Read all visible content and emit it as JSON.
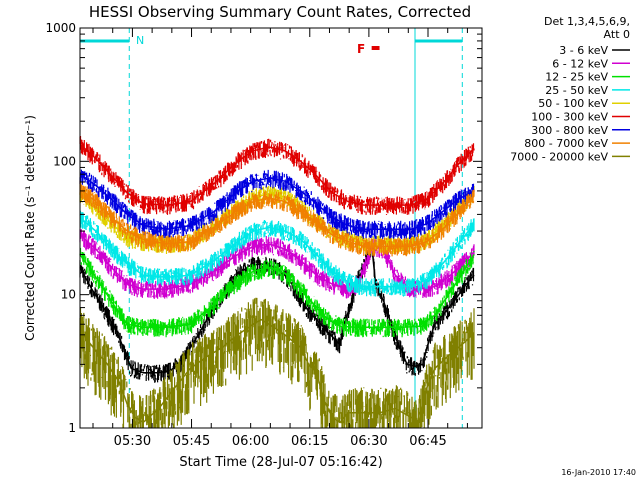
{
  "chart_data": {
    "type": "line",
    "title": "HESSI Observing Summary Count Rates, Corrected",
    "xlabel": "Start Time (28-Jul-07 05:16:42)",
    "ylabel": "Corrected Count Rate (s⁻¹ detector⁻¹)",
    "yscale": "log",
    "ylim": [
      1,
      1000
    ],
    "xlim_minutes": [
      0,
      102
    ],
    "x_ticks": [
      {
        "minutes": 13.3,
        "label": "05:30"
      },
      {
        "minutes": 28.3,
        "label": "05:45"
      },
      {
        "minutes": 43.3,
        "label": "06:00"
      },
      {
        "minutes": 58.3,
        "label": "06:15"
      },
      {
        "minutes": 73.3,
        "label": "06:30"
      },
      {
        "minutes": 88.3,
        "label": "06:45"
      }
    ],
    "y_tick_labels": [
      {
        "value": 1,
        "label": "1"
      },
      {
        "value": 10,
        "label": "10"
      },
      {
        "value": 100,
        "label": "100"
      },
      {
        "value": 1000,
        "label": "1000"
      }
    ],
    "legend_title": [
      "Det 1,3,4,5,6,9,",
      "Att 0"
    ],
    "legend_placement": "right",
    "timestamp": "16-Jan-2010 17:40",
    "annotations": {
      "n_label": "N",
      "f_label": "F",
      "f_minutes": [
        74,
        76
      ]
    },
    "night_intervals_minutes": [
      [
        0,
        12.5
      ],
      [
        85,
        97
      ]
    ],
    "series": [
      {
        "name": "3 - 6 keV",
        "color": "#000000",
        "x": [
          0,
          3,
          6,
          9,
          11,
          13,
          16,
          20,
          23,
          26,
          30,
          35,
          40,
          43,
          46,
          50,
          53,
          55,
          58,
          60,
          63,
          66,
          67,
          69,
          70,
          72,
          74,
          75,
          77,
          80,
          83,
          85,
          87,
          88,
          90,
          92,
          95,
          98,
          100
        ],
        "y": [
          16,
          11,
          8,
          5.5,
          4,
          2.8,
          2.6,
          2.6,
          2.7,
          3.2,
          5,
          9,
          14,
          16.5,
          17,
          16,
          13,
          10.5,
          7.5,
          6.5,
          5.2,
          4.2,
          6,
          9,
          12,
          16,
          24,
          12,
          9,
          4.8,
          3,
          2.9,
          3,
          4,
          6,
          7,
          9,
          12,
          14
        ]
      },
      {
        "name": "6 - 12 keV",
        "color": "#d000d0",
        "x": [
          0,
          4,
          8,
          12,
          16,
          22,
          28,
          34,
          40,
          44,
          48,
          52,
          56,
          60,
          64,
          68,
          70,
          72,
          74,
          77,
          80,
          83,
          86,
          90,
          94,
          98,
          100
        ],
        "y": [
          28,
          22,
          16,
          12,
          11,
          11,
          12,
          15,
          20,
          23,
          24,
          22,
          18,
          14,
          12,
          11,
          11.5,
          15,
          23,
          22,
          14,
          11.5,
          11,
          11.5,
          14,
          18,
          21
        ]
      },
      {
        "name": "12 - 25 keV",
        "color": "#00e000",
        "x": [
          0,
          3,
          6,
          9,
          12,
          16,
          22,
          28,
          34,
          40,
          44,
          48,
          52,
          56,
          60,
          63,
          66,
          70,
          74,
          78,
          82,
          86,
          90,
          93,
          96,
          100
        ],
        "y": [
          20,
          15,
          11,
          8,
          6,
          5.7,
          5.7,
          6,
          8.5,
          12.5,
          15,
          16,
          14.5,
          11,
          8,
          6.5,
          5.8,
          5.7,
          5.7,
          5.7,
          5.7,
          5.8,
          7,
          9.5,
          13,
          20
        ]
      },
      {
        "name": "25 - 50 keV",
        "color": "#00e8e8",
        "x": [
          0,
          4,
          8,
          12,
          16,
          22,
          28,
          34,
          40,
          44,
          48,
          52,
          56,
          60,
          64,
          68,
          72,
          76,
          80,
          84,
          88,
          92,
          96,
          100
        ],
        "y": [
          38,
          30,
          22,
          17,
          14,
          13.5,
          14,
          18,
          25,
          30,
          32,
          30,
          26,
          20,
          15,
          12.5,
          11.5,
          11.5,
          11.5,
          11.5,
          13,
          17,
          24,
          34
        ]
      },
      {
        "name": "50 - 100 keV",
        "color": "#e0d000",
        "x": [
          0,
          4,
          8,
          12,
          16,
          22,
          28,
          34,
          40,
          44,
          48,
          52,
          56,
          60,
          64,
          68,
          72,
          76,
          80,
          84,
          88,
          92,
          96,
          100
        ],
        "y": [
          58,
          45,
          34,
          27,
          25,
          24,
          25,
          33,
          45,
          54,
          57,
          54,
          45,
          36,
          29,
          26,
          24,
          24,
          24,
          24,
          26,
          33,
          44,
          58
        ]
      },
      {
        "name": "100 - 300 keV",
        "color": "#e00000",
        "x": [
          0,
          4,
          8,
          12,
          16,
          22,
          28,
          34,
          40,
          44,
          48,
          52,
          56,
          60,
          64,
          68,
          72,
          76,
          80,
          84,
          88,
          92,
          96,
          100
        ],
        "y": [
          135,
          105,
          78,
          58,
          48,
          47,
          50,
          68,
          100,
          120,
          128,
          120,
          100,
          78,
          58,
          50,
          47,
          47,
          47,
          47,
          52,
          68,
          95,
          125
        ]
      },
      {
        "name": "300 - 800 keV",
        "color": "#0000e0",
        "x": [
          0,
          4,
          8,
          12,
          16,
          22,
          28,
          34,
          40,
          44,
          48,
          52,
          56,
          60,
          64,
          68,
          72,
          76,
          80,
          84,
          88,
          92,
          96,
          100
        ],
        "y": [
          80,
          66,
          52,
          40,
          33,
          31,
          33,
          42,
          60,
          71,
          75,
          71,
          60,
          48,
          38,
          33,
          31,
          31,
          31,
          31,
          34,
          42,
          52,
          60
        ]
      },
      {
        "name": "800 - 7000 keV",
        "color": "#f08000",
        "x": [
          0,
          4,
          8,
          12,
          16,
          22,
          28,
          34,
          40,
          44,
          48,
          52,
          56,
          60,
          64,
          68,
          72,
          76,
          80,
          84,
          88,
          92,
          96,
          100
        ],
        "y": [
          62,
          50,
          38,
          30,
          26,
          24,
          25,
          32,
          43,
          50,
          53,
          50,
          42,
          35,
          28,
          25,
          23,
          23,
          23,
          23,
          25,
          31,
          41,
          55
        ]
      },
      {
        "name": "7000 - 20000 keV",
        "color": "#808000",
        "x": [
          0,
          2,
          4,
          7,
          10,
          12,
          14,
          16,
          20,
          24,
          28,
          32,
          36,
          40,
          44,
          46,
          48,
          52,
          56,
          58,
          60,
          62,
          64,
          66,
          68,
          72,
          76,
          80,
          84,
          86,
          88,
          90,
          94,
          98,
          100
        ],
        "y": [
          5.5,
          4.5,
          3.8,
          3,
          2.2,
          1.5,
          1.2,
          1.1,
          1.4,
          2,
          2.8,
          3.4,
          4,
          5,
          6,
          6.5,
          6,
          5,
          4,
          3,
          2.6,
          1.6,
          1.2,
          1.1,
          1.3,
          1.3,
          1.3,
          1.4,
          1.2,
          1.1,
          2,
          2.8,
          3.6,
          4.5,
          5.2
        ]
      }
    ]
  }
}
